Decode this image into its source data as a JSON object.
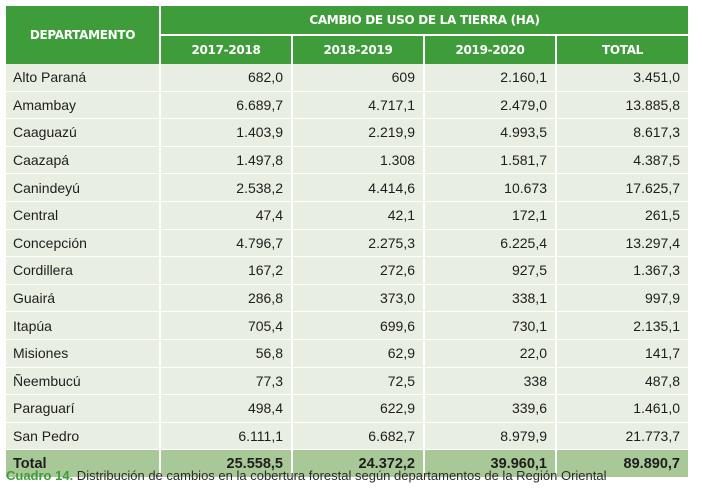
{
  "table": {
    "header_department": "DEPARTAMENTO",
    "header_group": "CAMBIO DE USO DE LA TIERRA (HA)",
    "columns": [
      "2017-2018",
      "2018-2019",
      "2019-2020",
      "TOTAL"
    ],
    "rows": [
      {
        "name": "Alto Paraná",
        "values": [
          "682,0",
          "609",
          "2.160,1",
          "3.451,0"
        ]
      },
      {
        "name": "Amambay",
        "values": [
          "6.689,7",
          "4.717,1",
          "2.479,0",
          "13.885,8"
        ]
      },
      {
        "name": "Caaguazú",
        "values": [
          "1.403,9",
          "2.219,9",
          "4.993,5",
          "8.617,3"
        ]
      },
      {
        "name": "Caazapá",
        "values": [
          "1.497,8",
          "1.308",
          "1.581,7",
          "4.387,5"
        ]
      },
      {
        "name": "Canindeyú",
        "values": [
          "2.538,2",
          "4.414,6",
          "10.673",
          "17.625,7"
        ]
      },
      {
        "name": "Central",
        "values": [
          "47,4",
          "42,1",
          "172,1",
          "261,5"
        ]
      },
      {
        "name": "Concepción",
        "values": [
          "4.796,7",
          "2.275,3",
          "6.225,4",
          "13.297,4"
        ]
      },
      {
        "name": "Cordillera",
        "values": [
          "167,2",
          "272,6",
          "927,5",
          "1.367,3"
        ]
      },
      {
        "name": "Guairá",
        "values": [
          "286,8",
          "373,0",
          "338,1",
          "997,9"
        ]
      },
      {
        "name": "Itapúa",
        "values": [
          "705,4",
          "699,6",
          "730,1",
          "2.135,1"
        ]
      },
      {
        "name": "Misiones",
        "values": [
          "56,8",
          "62,9",
          "22,0",
          "141,7"
        ]
      },
      {
        "name": "Ñeembucú",
        "values": [
          "77,3",
          "72,5",
          "338",
          "487,8"
        ]
      },
      {
        "name": "Paraguarí",
        "values": [
          "498,4",
          "622,9",
          "339,6",
          "1.461,0"
        ]
      },
      {
        "name": "San Pedro",
        "values": [
          "6.111,1",
          "6.682,7",
          "8.979,9",
          "21.773,7"
        ]
      }
    ],
    "total": {
      "name": "Total",
      "values": [
        "25.558,5",
        "24.372,2",
        "39.960,1",
        "89.890,7"
      ]
    }
  },
  "caption": {
    "label": "Cuadro 14.",
    "text": " Distribución de cambios en la cobertura forestal según departamentos de la Región Oriental"
  },
  "colors": {
    "header_green": "#3f9c3a",
    "row_bg": "#e8eee1",
    "total_bg": "#a8c898"
  }
}
